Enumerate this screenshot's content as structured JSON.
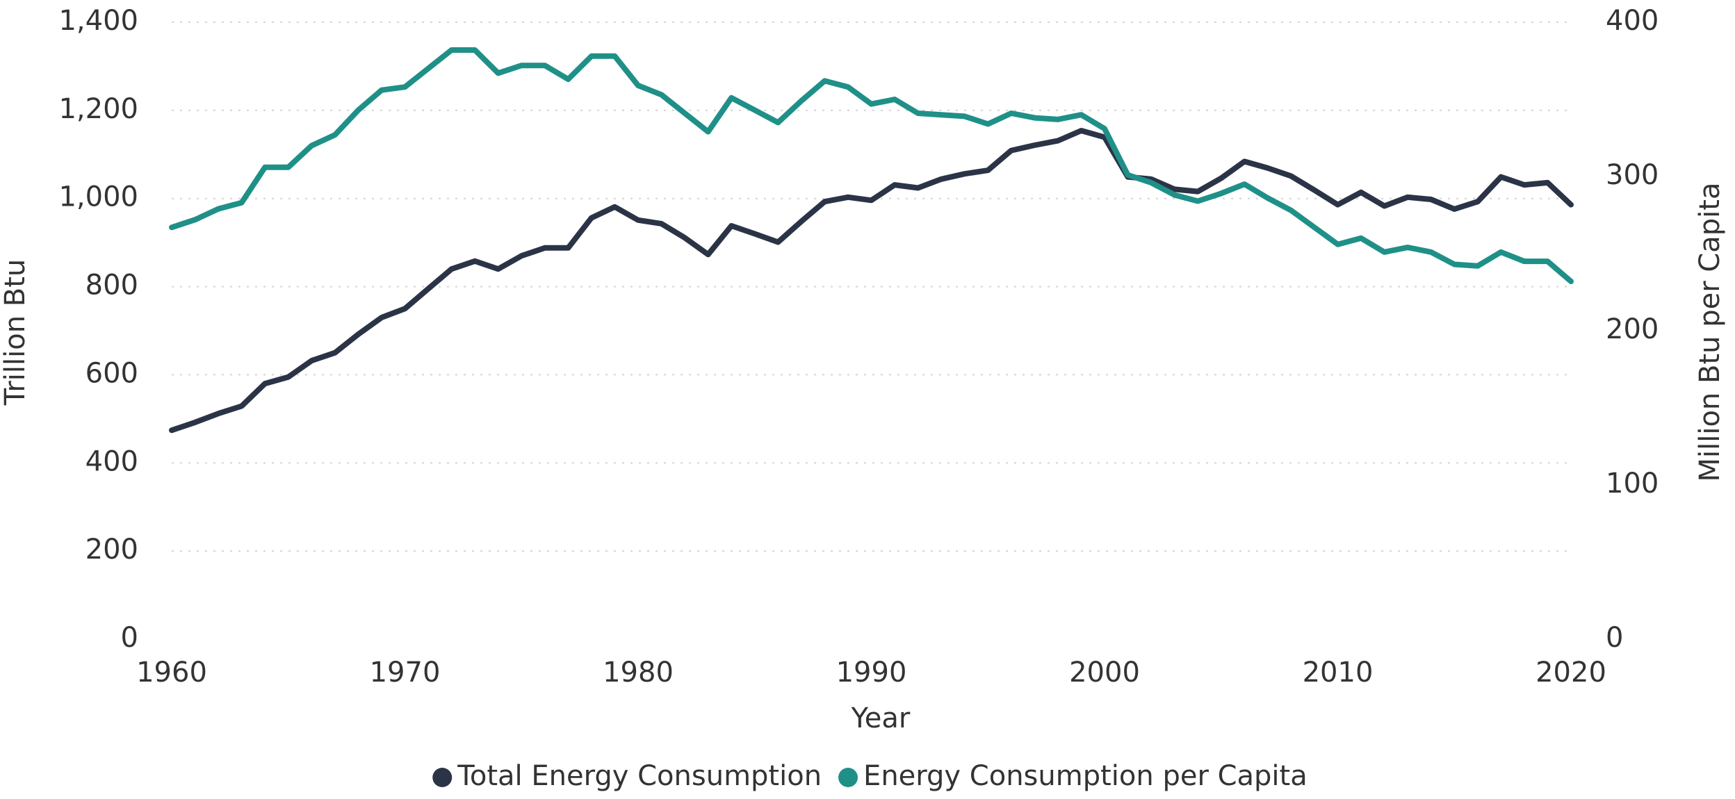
{
  "chart_data": {
    "type": "line",
    "x_label": "Year",
    "y_label": "Trillion Btu",
    "y2_label": "Million Btu per Capita",
    "x": [
      1960,
      1961,
      1962,
      1963,
      1964,
      1965,
      1966,
      1967,
      1968,
      1969,
      1970,
      1971,
      1972,
      1973,
      1974,
      1975,
      1976,
      1977,
      1978,
      1979,
      1980,
      1981,
      1982,
      1983,
      1984,
      1985,
      1986,
      1987,
      1988,
      1989,
      1990,
      1991,
      1992,
      1993,
      1994,
      1995,
      1996,
      1997,
      1998,
      1999,
      2000,
      2001,
      2002,
      2003,
      2004,
      2005,
      2006,
      2007,
      2008,
      2009,
      2010,
      2011,
      2012,
      2013,
      2014,
      2015,
      2016,
      2017,
      2018,
      2019,
      2020
    ],
    "series": [
      {
        "name": "Total Energy Consumption",
        "color": "#2b3447",
        "axis": "y",
        "values": [
          474,
          492,
          512,
          529,
          580,
          595,
          632,
          650,
          692,
          730,
          750,
          795,
          840,
          858,
          840,
          870,
          888,
          888,
          956,
          981,
          951,
          943,
          911,
          873,
          938,
          920,
          901,
          948,
          993,
          1003,
          996,
          1031,
          1024,
          1044,
          1056,
          1064,
          1109,
          1121,
          1131,
          1154,
          1139,
          1049,
          1044,
          1021,
          1016,
          1046,
          1084,
          1069,
          1051,
          1019,
          986,
          1014,
          983,
          1003,
          998,
          976,
          993,
          1049,
          1031,
          1036,
          986
        ]
      },
      {
        "name": "Energy Consumption per Capita",
        "color": "#1f9088",
        "axis": "y2",
        "values": [
          267,
          272,
          279,
          283,
          306,
          306,
          320,
          327,
          343,
          356,
          358,
          370,
          382,
          382,
          367,
          372,
          372,
          363,
          378,
          378,
          359,
          353,
          341,
          329,
          351,
          343,
          335,
          349,
          362,
          358,
          347,
          350,
          341,
          340,
          339,
          334,
          341,
          338,
          337,
          340,
          331,
          301,
          296,
          288,
          284,
          289,
          295,
          286,
          278,
          267,
          256,
          260,
          251,
          254,
          251,
          243,
          242,
          251,
          245,
          245,
          232
        ]
      }
    ],
    "xlim": [
      1960,
      2020
    ],
    "xticks": [
      1960,
      1970,
      1980,
      1990,
      2000,
      2010,
      2020
    ],
    "ylim": [
      0,
      1400
    ],
    "yticks": [
      0,
      200,
      400,
      600,
      800,
      {
        "value": 1000,
        "label": "1,000"
      },
      {
        "value": 1200,
        "label": "1,200"
      },
      {
        "value": 1400,
        "label": "1,400"
      }
    ],
    "y2lim": [
      0,
      400
    ],
    "y2ticks": [
      0,
      100,
      200,
      300,
      400
    ],
    "grid": true,
    "legend": "bottom"
  }
}
